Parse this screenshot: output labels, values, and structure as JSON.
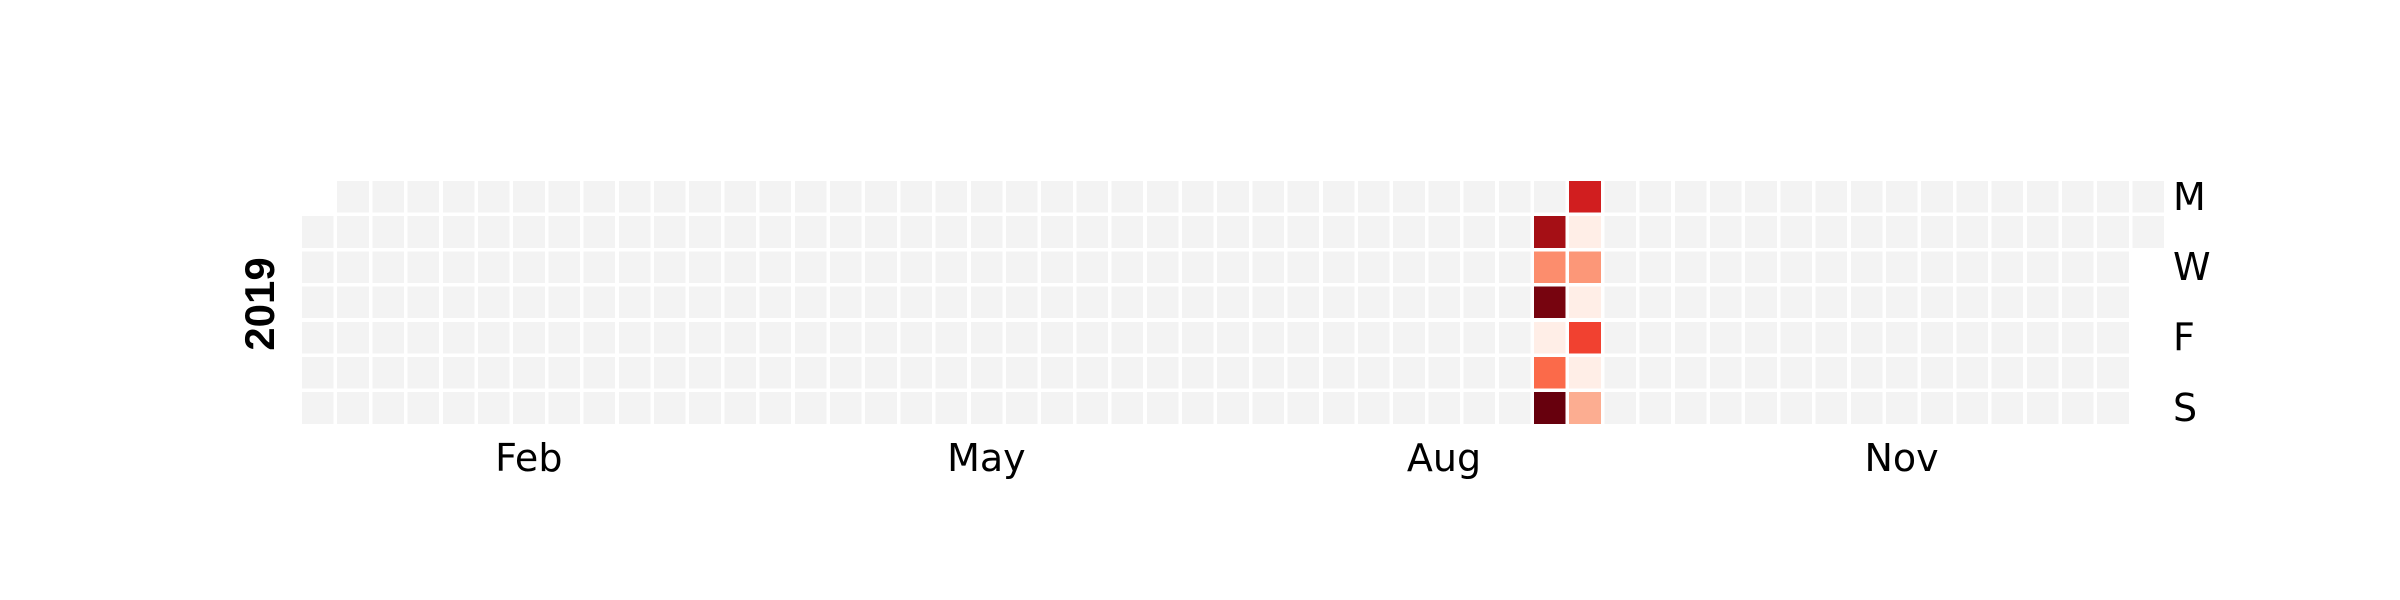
{
  "chart_data": {
    "type": "heatmap",
    "title": "",
    "year": "2019",
    "colormap": "Reds",
    "empty_color": "#f3f3f3",
    "weekday_labels": [
      "M",
      "W",
      "F",
      "S"
    ],
    "weekday_label_rows": [
      0,
      2,
      4,
      6
    ],
    "month_labels": [
      "Feb",
      "May",
      "Aug",
      "Nov"
    ],
    "month_label_weeks": [
      6.5,
      19.5,
      32.5,
      45.5
    ],
    "num_weeks": 53,
    "first_week_start_row": 1,
    "last_week_end_row": 1,
    "value_range": [
      0,
      1
    ],
    "values": [
      {
        "week": 35,
        "day": 1,
        "value": 0.92
      },
      {
        "week": 35,
        "day": 2,
        "value": 0.42
      },
      {
        "week": 35,
        "day": 3,
        "value": 0.98
      },
      {
        "week": 35,
        "day": 4,
        "value": 0.03
      },
      {
        "week": 35,
        "day": 5,
        "value": 0.55
      },
      {
        "week": 35,
        "day": 6,
        "value": 1.0
      },
      {
        "week": 36,
        "day": 0,
        "value": 0.8
      },
      {
        "week": 36,
        "day": 1,
        "value": 0.03
      },
      {
        "week": 36,
        "day": 2,
        "value": 0.38
      },
      {
        "week": 36,
        "day": 3,
        "value": 0.03
      },
      {
        "week": 36,
        "day": 4,
        "value": 0.68
      },
      {
        "week": 36,
        "day": 5,
        "value": 0.03
      },
      {
        "week": 36,
        "day": 6,
        "value": 0.3
      }
    ]
  }
}
